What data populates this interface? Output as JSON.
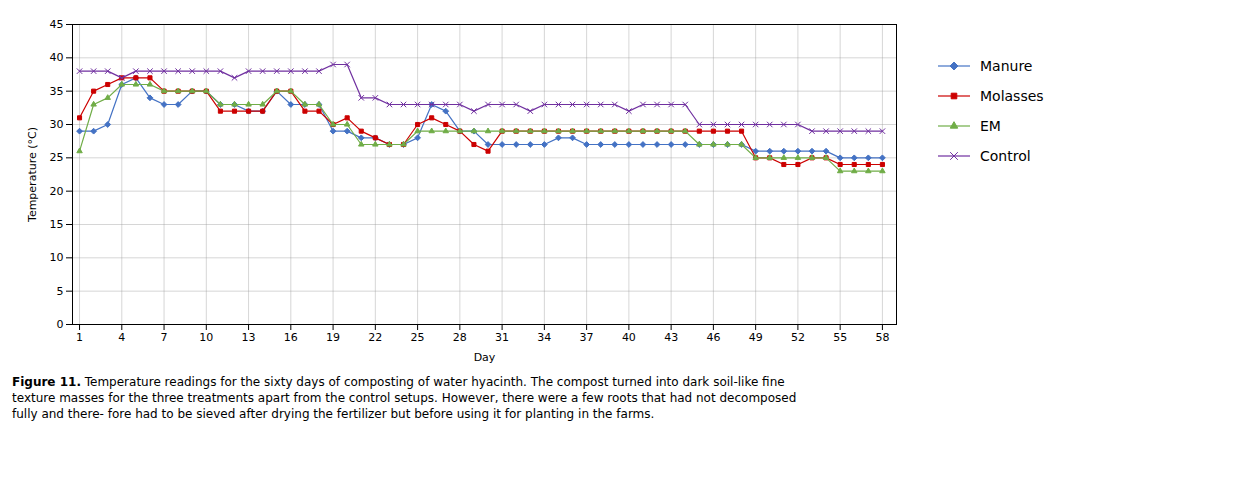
{
  "chart_data": {
    "type": "line",
    "xlabel": "Day",
    "ylabel": "Temperature (°C)",
    "x": [
      1,
      2,
      3,
      4,
      5,
      6,
      7,
      8,
      9,
      10,
      11,
      12,
      13,
      14,
      15,
      16,
      17,
      18,
      19,
      20,
      21,
      22,
      23,
      24,
      25,
      26,
      27,
      28,
      29,
      30,
      31,
      32,
      33,
      34,
      35,
      36,
      37,
      38,
      39,
      40,
      41,
      42,
      43,
      44,
      45,
      46,
      47,
      48,
      49,
      50,
      51,
      52,
      53,
      54,
      55,
      56,
      57,
      58
    ],
    "xlim": [
      0.5,
      59
    ],
    "xticks": [
      1,
      4,
      7,
      10,
      13,
      16,
      19,
      22,
      25,
      28,
      31,
      34,
      37,
      40,
      43,
      46,
      49,
      52,
      55,
      58
    ],
    "ylim": [
      0,
      45
    ],
    "yticks": [
      0,
      5,
      10,
      15,
      20,
      25,
      30,
      35,
      40,
      45
    ],
    "grid": true,
    "legend": "right",
    "series": [
      {
        "name": "Manure",
        "color": "#4472C4",
        "marker": "diamond",
        "values": [
          29,
          29,
          30,
          36,
          37,
          34,
          33,
          33,
          35,
          35,
          33,
          33,
          32,
          32,
          35,
          33,
          33,
          33,
          29,
          29,
          28,
          28,
          27,
          27,
          28,
          33,
          32,
          29,
          29,
          27,
          27,
          27,
          27,
          27,
          28,
          28,
          27,
          27,
          27,
          27,
          27,
          27,
          27,
          27,
          27,
          27,
          27,
          27,
          26,
          26,
          26,
          26,
          26,
          26,
          25,
          25,
          25,
          25
        ]
      },
      {
        "name": "Molasses",
        "color": "#CC0000",
        "marker": "square",
        "values": [
          31,
          35,
          36,
          37,
          37,
          37,
          35,
          35,
          35,
          35,
          32,
          32,
          32,
          32,
          35,
          35,
          32,
          32,
          30,
          31,
          29,
          28,
          27,
          27,
          30,
          31,
          30,
          29,
          27,
          26,
          29,
          29,
          29,
          29,
          29,
          29,
          29,
          29,
          29,
          29,
          29,
          29,
          29,
          29,
          29,
          29,
          29,
          29,
          25,
          25,
          24,
          24,
          25,
          25,
          24,
          24,
          24,
          24
        ]
      },
      {
        "name": "EM",
        "color": "#70AD47",
        "marker": "triangle",
        "values": [
          26,
          33,
          34,
          36,
          36,
          36,
          35,
          35,
          35,
          35,
          33,
          33,
          33,
          33,
          35,
          35,
          33,
          33,
          30,
          30,
          27,
          27,
          27,
          27,
          29,
          29,
          29,
          29,
          29,
          29,
          29,
          29,
          29,
          29,
          29,
          29,
          29,
          29,
          29,
          29,
          29,
          29,
          29,
          29,
          27,
          27,
          27,
          27,
          25,
          25,
          25,
          25,
          25,
          25,
          23,
          23,
          23,
          23
        ]
      },
      {
        "name": "Control",
        "color": "#7030A0",
        "marker": "x",
        "values": [
          38,
          38,
          38,
          37,
          38,
          38,
          38,
          38,
          38,
          38,
          38,
          37,
          38,
          38,
          38,
          38,
          38,
          38,
          39,
          39,
          34,
          34,
          33,
          33,
          33,
          33,
          33,
          33,
          32,
          33,
          33,
          33,
          32,
          33,
          33,
          33,
          33,
          33,
          33,
          32,
          33,
          33,
          33,
          33,
          30,
          30,
          30,
          30,
          30,
          30,
          30,
          30,
          29,
          29,
          29,
          29,
          29,
          29
        ]
      }
    ],
    "caption_title": "Figure 11.",
    "caption": "Temperature readings for the sixty days of composting of water hyacinth. The compost turned into dark soil-like fine\ntexture masses for the three treatments apart from the control setups. However, there were a few roots that had not decomposed\nfully and there- fore had to be sieved after drying the fertilizer but before using it for planting in the farms."
  }
}
